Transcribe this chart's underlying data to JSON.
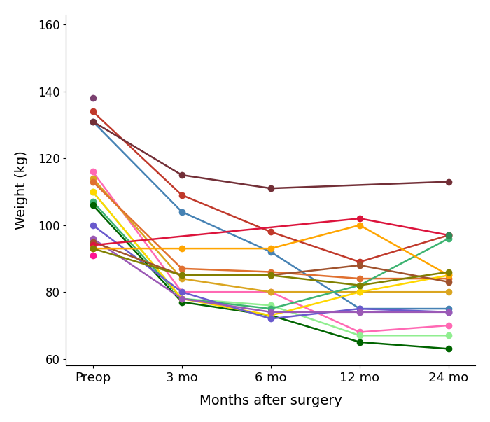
{
  "x_labels": [
    "Preop",
    "3 mo",
    "6 mo",
    "12 mo",
    "24 mo"
  ],
  "x_positions": [
    0,
    1,
    2,
    3,
    4
  ],
  "xlabel": "Months after surgery",
  "ylabel": "Weight (kg)",
  "ylim": [
    58,
    163
  ],
  "xlim": [
    -0.3,
    4.3
  ],
  "yticks": [
    60,
    80,
    100,
    120,
    140,
    160
  ],
  "marker_size": 7,
  "linewidth": 1.8,
  "subjects": [
    {
      "color": "#7B4070",
      "data": [
        138,
        null,
        null,
        null,
        null
      ]
    },
    {
      "color": "#C0392B",
      "data": [
        134,
        109,
        98,
        89,
        97
      ]
    },
    {
      "color": "#4682B4",
      "data": [
        131,
        104,
        92,
        75,
        75
      ]
    },
    {
      "color": "#722F37",
      "data": [
        131,
        115,
        111,
        null,
        113
      ]
    },
    {
      "color": "#FF69B4",
      "data": [
        116,
        80,
        80,
        68,
        70
      ]
    },
    {
      "color": "#DAA520",
      "data": [
        114,
        84,
        80,
        80,
        80
      ]
    },
    {
      "color": "#E07030",
      "data": [
        113,
        87,
        86,
        84,
        84
      ]
    },
    {
      "color": "#90EE90",
      "data": [
        110,
        78,
        76,
        67,
        67
      ]
    },
    {
      "color": "#3CB371",
      "data": [
        107,
        78,
        75,
        82,
        96
      ]
    },
    {
      "color": "#006400",
      "data": [
        106,
        77,
        73,
        65,
        63
      ]
    },
    {
      "color": "#FFD700",
      "data": [
        110,
        78,
        73,
        80,
        85
      ]
    },
    {
      "color": "#6A5ACD",
      "data": [
        100,
        80,
        72,
        75,
        74
      ]
    },
    {
      "color": "#9B59B6",
      "data": [
        96,
        78,
        74,
        74,
        74
      ]
    },
    {
      "color": "#A0522D",
      "data": [
        95,
        85,
        85,
        88,
        83
      ]
    },
    {
      "color": "#DC143C",
      "data": [
        94,
        null,
        null,
        102,
        97
      ]
    },
    {
      "color": "#FFA500",
      "data": [
        93,
        93,
        93,
        100,
        85
      ]
    },
    {
      "color": "#808000",
      "data": [
        93,
        85,
        85,
        82,
        86
      ]
    },
    {
      "color": "#2E8B57",
      "data": [
        null,
        null,
        null,
        null,
        97
      ]
    },
    {
      "color": "#FF1493",
      "data": [
        91,
        null,
        null,
        null,
        null
      ]
    }
  ]
}
